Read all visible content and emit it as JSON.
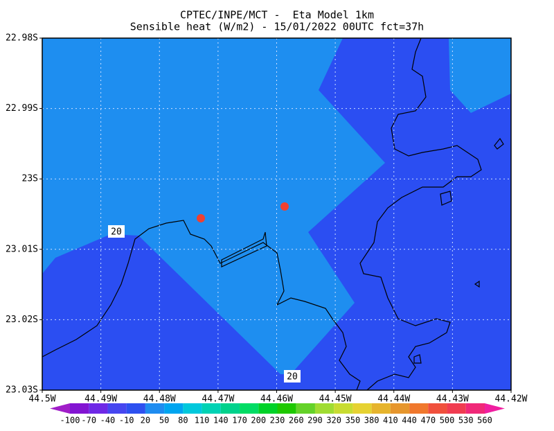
{
  "title": [
    "CPTEC/INPE/MCT -  Eta Model 1km",
    "Sensible heat (W/m2) - 15/01/2022 00UTC fct=37h"
  ],
  "map": {
    "lon_range": [
      -44.5,
      -44.42
    ],
    "lat_range": [
      -22.98,
      -23.03
    ],
    "lon_ticks": [
      {
        "value": -44.5,
        "label": "44.5W"
      },
      {
        "value": -44.49,
        "label": "44.49W"
      },
      {
        "value": -44.48,
        "label": "44.48W"
      },
      {
        "value": -44.47,
        "label": "44.47W"
      },
      {
        "value": -44.46,
        "label": "44.46W"
      },
      {
        "value": -44.45,
        "label": "44.45W"
      },
      {
        "value": -44.44,
        "label": "44.44W"
      },
      {
        "value": -44.43,
        "label": "44.43W"
      },
      {
        "value": -44.42,
        "label": "44.42W"
      }
    ],
    "lat_ticks": [
      {
        "value": -22.98,
        "label": "22.98S"
      },
      {
        "value": -22.99,
        "label": "22.99S"
      },
      {
        "value": -23,
        "label": "23S"
      },
      {
        "value": -23.01,
        "label": "23.01S"
      },
      {
        "value": -23.02,
        "label": "23.02S"
      },
      {
        "value": -23.03,
        "label": "23.03S"
      }
    ],
    "grid": true,
    "contour_labels": [
      "20",
      "20"
    ]
  },
  "colorbar": {
    "levels": [
      -100,
      -70,
      -40,
      -10,
      20,
      50,
      80,
      110,
      140,
      170,
      200,
      230,
      260,
      290,
      320,
      350,
      380,
      410,
      440,
      470,
      500,
      530,
      560
    ],
    "colors": [
      "#a01ec8",
      "#8214d2",
      "#6e28e6",
      "#4646f0",
      "#2d50f0",
      "#1e8cf0",
      "#00a5f0",
      "#00c8dc",
      "#00d2b4",
      "#00d28c",
      "#00dc64",
      "#00d228",
      "#1ec800",
      "#64d228",
      "#a0dc32",
      "#c8dc32",
      "#e6d232",
      "#e6b42d",
      "#e6962d",
      "#f0782d",
      "#f0503c",
      "#f03c50",
      "#f02878",
      "#f01ea0"
    ]
  }
}
